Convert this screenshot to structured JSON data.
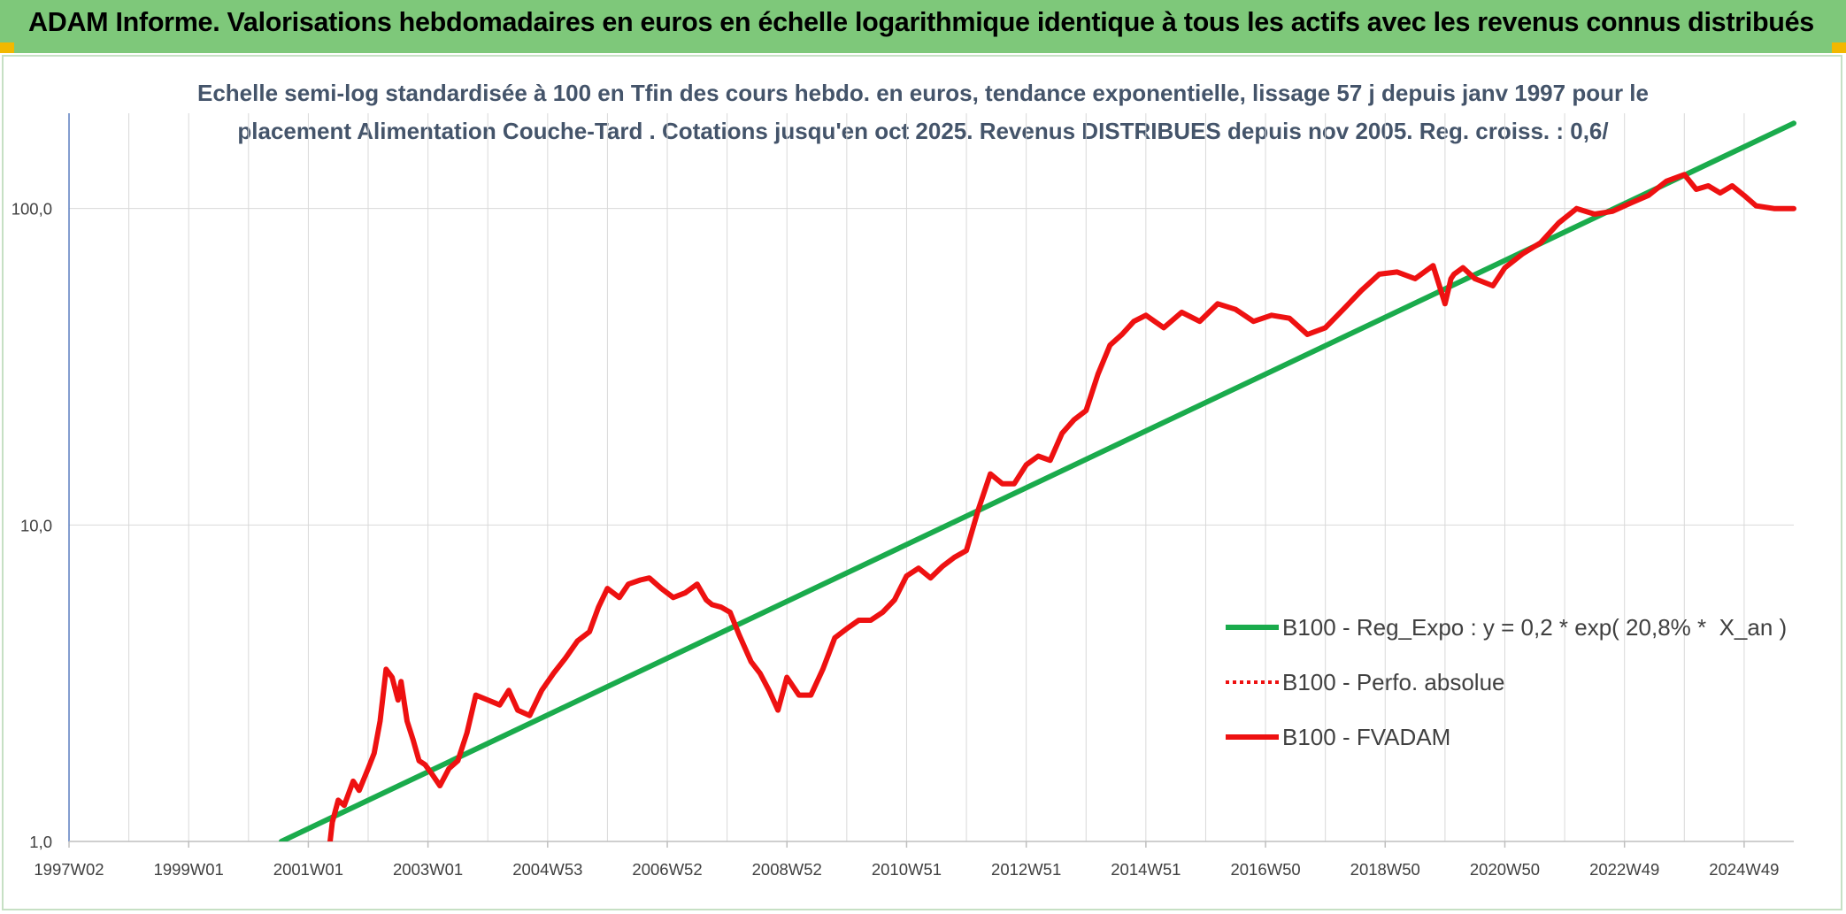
{
  "banner": {
    "title": "ADAM Informe. Valorisations hebdomadaires en euros en échelle logarithmique identique à tous les actifs avec les revenus connus distribués"
  },
  "colors": {
    "banner_bg": "#7ec87a",
    "regression_line": "#1aab4c",
    "fvadam_line": "#ee1111",
    "perfo_line": "#ee1111",
    "gridline": "#d9d9d9",
    "axis": "#5b7fbf"
  },
  "chart_data": {
    "type": "line",
    "title_lines": [
      "Echelle semi-log standardisée à 100 en Tfin des cours hebdo. en euros, tendance exponentielle, lissage 57 j depuis janv 1997 pour le",
      "placement Alimentation Couche-Tard . Cotations jusqu'en oct 2025. Revenus DISTRIBUES depuis nov 2005. Reg. croiss. : 0,6/"
    ],
    "y_scale": "log",
    "ylim": [
      1,
      200
    ],
    "y_ticks": [
      {
        "value": 1,
        "label": "1,0"
      },
      {
        "value": 10,
        "label": "10,0"
      },
      {
        "value": 100,
        "label": "100,0"
      }
    ],
    "xlim": [
      1997.0,
      2025.83
    ],
    "x_ticks": [
      {
        "year": 1997.0,
        "label": "1997W02"
      },
      {
        "year": 1999.0,
        "label": "1999W01"
      },
      {
        "year": 2001.0,
        "label": "2001W01"
      },
      {
        "year": 2003.0,
        "label": "2003W01"
      },
      {
        "year": 2005.0,
        "label": "2004W53"
      },
      {
        "year": 2007.0,
        "label": "2006W52"
      },
      {
        "year": 2009.0,
        "label": "2008W52"
      },
      {
        "year": 2011.0,
        "label": "2010W51"
      },
      {
        "year": 2013.0,
        "label": "2012W51"
      },
      {
        "year": 2015.0,
        "label": "2014W51"
      },
      {
        "year": 2017.0,
        "label": "2016W50"
      },
      {
        "year": 2019.0,
        "label": "2018W50"
      },
      {
        "year": 2021.0,
        "label": "2020W50"
      },
      {
        "year": 2023.0,
        "label": "2022W49"
      },
      {
        "year": 2025.0,
        "label": "2024W49"
      }
    ],
    "grid": true,
    "legend_position": "bottom-right",
    "series": [
      {
        "name": "B100 - Reg_Expo : y = 0,2 * exp( 20,8% *  X_an )",
        "style": "solid-green",
        "x": [
          2000.55,
          2025.83
        ],
        "y": [
          1.0,
          186
        ]
      },
      {
        "name": "B100 - Perfo. absolue",
        "style": "dotted-red",
        "x": [],
        "y": []
      },
      {
        "name": "B100 - FVADAM",
        "style": "solid-red",
        "x": [
          2001.35,
          2001.4,
          2001.5,
          2001.6,
          2001.75,
          2001.85,
          2002.0,
          2002.1,
          2002.2,
          2002.3,
          2002.4,
          2002.5,
          2002.55,
          2002.65,
          2002.75,
          2002.85,
          2002.95,
          2003.05,
          2003.2,
          2003.35,
          2003.5,
          2003.65,
          2003.8,
          2004.0,
          2004.2,
          2004.35,
          2004.5,
          2004.7,
          2004.9,
          2005.1,
          2005.3,
          2005.5,
          2005.7,
          2005.85,
          2006.0,
          2006.2,
          2006.35,
          2006.55,
          2006.7,
          2006.9,
          2007.1,
          2007.3,
          2007.5,
          2007.65,
          2007.75,
          2007.9,
          2008.05,
          2008.2,
          2008.4,
          2008.55,
          2008.7,
          2008.85,
          2009.0,
          2009.2,
          2009.4,
          2009.6,
          2009.8,
          2010.0,
          2010.2,
          2010.4,
          2010.6,
          2010.8,
          2011.0,
          2011.2,
          2011.4,
          2011.6,
          2011.8,
          2012.0,
          2012.2,
          2012.4,
          2012.6,
          2012.8,
          2013.0,
          2013.2,
          2013.4,
          2013.6,
          2013.8,
          2014.0,
          2014.2,
          2014.4,
          2014.6,
          2014.8,
          2015.0,
          2015.3,
          2015.6,
          2015.9,
          2016.2,
          2016.5,
          2016.8,
          2017.1,
          2017.4,
          2017.7,
          2018.0,
          2018.3,
          2018.6,
          2018.9,
          2019.2,
          2019.5,
          2019.8,
          2020.0,
          2020.1,
          2020.15,
          2020.3,
          2020.5,
          2020.8,
          2021.0,
          2021.3,
          2021.6,
          2021.9,
          2022.2,
          2022.5,
          2022.8,
          2023.1,
          2023.4,
          2023.7,
          2024.0,
          2024.2,
          2024.4,
          2024.6,
          2024.8,
          2025.0,
          2025.2,
          2025.5,
          2025.83
        ],
        "y": [
          0.95,
          1.15,
          1.35,
          1.3,
          1.55,
          1.45,
          1.7,
          1.9,
          2.4,
          3.5,
          3.3,
          2.8,
          3.2,
          2.4,
          2.1,
          1.8,
          1.75,
          1.65,
          1.5,
          1.7,
          1.8,
          2.2,
          2.9,
          2.8,
          2.7,
          3.0,
          2.6,
          2.5,
          3.0,
          3.4,
          3.8,
          4.3,
          4.6,
          5.5,
          6.3,
          5.9,
          6.5,
          6.7,
          6.8,
          6.3,
          5.9,
          6.1,
          6.5,
          5.8,
          5.6,
          5.5,
          5.3,
          4.5,
          3.7,
          3.4,
          3.0,
          2.6,
          3.3,
          2.9,
          2.9,
          3.5,
          4.4,
          4.7,
          5.0,
          5.0,
          5.3,
          5.8,
          6.9,
          7.3,
          6.8,
          7.4,
          7.9,
          8.3,
          11.2,
          14.5,
          13.5,
          13.5,
          15.5,
          16.5,
          16.0,
          19.5,
          21.5,
          23.0,
          30.0,
          37.0,
          40.0,
          44.0,
          46.0,
          42.0,
          47.0,
          44.0,
          50.0,
          48.0,
          44.0,
          46.0,
          45.0,
          40.0,
          42.0,
          48.0,
          55.0,
          62.0,
          63.0,
          60.0,
          66.0,
          50.0,
          60.0,
          62.0,
          65.0,
          60.0,
          57.0,
          65.0,
          72.0,
          78.0,
          90.0,
          100.0,
          96.0,
          98.0,
          104.0,
          110.0,
          122.0,
          128.0,
          115.0,
          118.0,
          112.0,
          118.0,
          110.0,
          102.0,
          100.0,
          100.0
        ]
      }
    ]
  }
}
